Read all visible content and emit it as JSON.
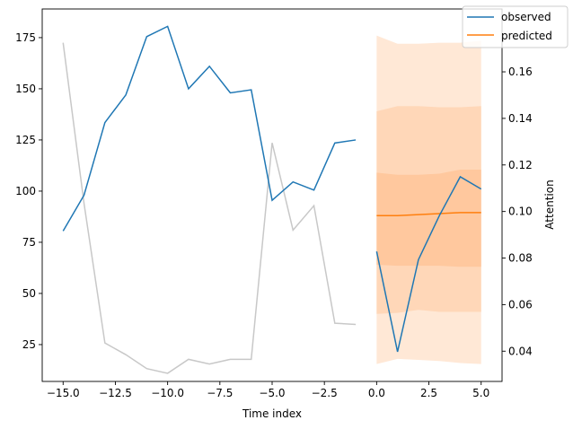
{
  "chart_data": {
    "type": "line",
    "xlabel": "Time index",
    "ylabel_left": "",
    "ylabel_right": "Attention",
    "xlim": [
      -16,
      6
    ],
    "ylim_left": [
      7,
      189
    ],
    "ylim_right": [
      0.027,
      0.187
    ],
    "x_ticks": [
      -15.0,
      -12.5,
      -10.0,
      -7.5,
      -5.0,
      -2.5,
      0.0,
      2.5,
      5.0
    ],
    "x_tick_labels": [
      "−15.0",
      "−12.5",
      "−10.0",
      "−7.5",
      "−5.0",
      "−2.5",
      "0.0",
      "2.5",
      "5.0"
    ],
    "y_left_ticks": [
      25,
      50,
      75,
      100,
      125,
      150,
      175
    ],
    "y_left_tick_labels": [
      "25",
      "50",
      "75",
      "100",
      "125",
      "150",
      "175"
    ],
    "y_right_ticks": [
      0.04,
      0.06,
      0.08,
      0.1,
      0.12,
      0.14,
      0.16
    ],
    "y_right_tick_labels": [
      "0.04",
      "0.06",
      "0.08",
      "0.10",
      "0.12",
      "0.14",
      "0.16"
    ],
    "legend_position": "top-right",
    "legend": [
      {
        "label": "observed",
        "color": "#1f77b4"
      },
      {
        "label": "predicted",
        "color": "#ff7f0e"
      }
    ],
    "series": [
      {
        "name": "observed",
        "axis": "left",
        "color": "#1f77b4",
        "segments": [
          {
            "x": [
              -15,
              -14,
              -13,
              -12,
              -11,
              -10,
              -9,
              -8,
              -7,
              -6,
              -5,
              -4,
              -3,
              -2,
              -1
            ],
            "y": [
              80.5,
              98,
              133.5,
              147,
              175.5,
              180.5,
              150,
              161,
              148,
              149.5,
              95.5,
              104.5,
              100.5,
              123.5,
              125
            ]
          },
          {
            "x": [
              0,
              1,
              2,
              3,
              4,
              5
            ],
            "y": [
              70.5,
              21.5,
              66.5,
              88,
              107,
              101
            ]
          }
        ]
      },
      {
        "name": "predicted",
        "axis": "left",
        "color": "#ff7f0e",
        "x": [
          0,
          1,
          2,
          3,
          4,
          5
        ],
        "y": [
          88,
          88,
          88.5,
          89,
          89.5,
          89.5
        ]
      },
      {
        "axis": "right",
        "color": "#c8c8c8",
        "x": [
          -15,
          -14,
          -13,
          -12,
          -11,
          -10,
          -9,
          -8,
          -7,
          -6,
          -5,
          -4,
          -3,
          -2,
          -1
        ],
        "y": [
          0.1725,
          0.1035,
          0.0435,
          0.0385,
          0.0325,
          0.0305,
          0.0365,
          0.0345,
          0.0365,
          0.0365,
          0.1295,
          0.092,
          0.1025,
          0.052,
          0.0515
        ]
      }
    ],
    "bands": [
      {
        "color": "#ffe8d6",
        "x": [
          0,
          1,
          2,
          3,
          4,
          5
        ],
        "lower": [
          15.5,
          18,
          17.5,
          17,
          16,
          15.5
        ],
        "upper": [
          176,
          172,
          172,
          172.5,
          172.5,
          173.5
        ]
      },
      {
        "color": "#ffd7b8",
        "x": [
          0,
          1,
          2,
          3,
          4,
          5
        ],
        "lower": [
          40,
          40.5,
          42,
          41,
          41,
          41
        ],
        "upper": [
          139,
          141.5,
          141.5,
          141,
          141,
          141.5
        ]
      },
      {
        "color": "#ffc89e",
        "x": [
          0,
          1,
          2,
          3,
          4,
          5
        ],
        "lower": [
          64,
          63.5,
          63.5,
          63.5,
          63,
          63
        ],
        "upper": [
          109,
          108,
          108,
          108.5,
          110.5,
          110.5
        ]
      }
    ]
  }
}
